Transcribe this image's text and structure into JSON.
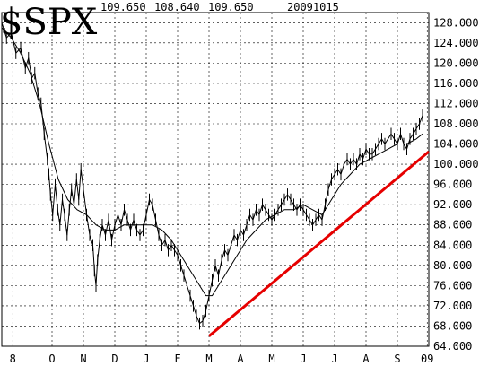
{
  "chart_data": {
    "type": "line",
    "title": "$SPX",
    "header_values": [
      "109.650",
      "108.640",
      "109.650",
      "20091015"
    ],
    "ylim": [
      64,
      130
    ],
    "y_ticks": [
      "64.000",
      "68.000",
      "72.000",
      "76.000",
      "80.000",
      "84.000",
      "88.000",
      "92.000",
      "96.000",
      "100.000",
      "104.000",
      "108.000",
      "112.000",
      "116.000",
      "120.000",
      "124.000",
      "128.000"
    ],
    "x_ticks": [
      {
        "label": "8",
        "m": 0.35
      },
      {
        "label": "O",
        "m": 1.6
      },
      {
        "label": "N",
        "m": 2.6
      },
      {
        "label": "D",
        "m": 3.6
      },
      {
        "label": "J",
        "m": 4.6
      },
      {
        "label": "F",
        "m": 5.6
      },
      {
        "label": "M",
        "m": 6.6
      },
      {
        "label": "A",
        "m": 7.6
      },
      {
        "label": "M",
        "m": 8.6
      },
      {
        "label": "J",
        "m": 9.6
      },
      {
        "label": "J",
        "m": 10.6
      },
      {
        "label": "A",
        "m": 11.6
      },
      {
        "label": "S",
        "m": 12.6
      },
      {
        "label": "09",
        "m": 13.55
      }
    ],
    "grid": true,
    "series": [
      {
        "style": "price-bars",
        "color": "#000000",
        "points": [
          [
            0.0,
            128
          ],
          [
            0.15,
            125
          ],
          [
            0.3,
            126
          ],
          [
            0.45,
            122
          ],
          [
            0.6,
            123
          ],
          [
            0.75,
            119
          ],
          [
            0.85,
            121
          ],
          [
            0.95,
            117
          ],
          [
            1.05,
            118
          ],
          [
            1.15,
            114
          ],
          [
            1.25,
            112
          ],
          [
            1.35,
            106
          ],
          [
            1.45,
            101
          ],
          [
            1.5,
            98
          ],
          [
            1.55,
            94
          ],
          [
            1.62,
            90
          ],
          [
            1.7,
            96
          ],
          [
            1.78,
            91
          ],
          [
            1.85,
            88
          ],
          [
            1.93,
            93
          ],
          [
            2.0,
            90
          ],
          [
            2.08,
            86
          ],
          [
            2.15,
            91
          ],
          [
            2.22,
            95
          ],
          [
            2.3,
            92
          ],
          [
            2.38,
            97
          ],
          [
            2.45,
            93
          ],
          [
            2.52,
            99
          ],
          [
            2.6,
            95
          ],
          [
            2.7,
            90
          ],
          [
            2.8,
            86
          ],
          [
            2.9,
            84
          ],
          [
            2.95,
            79
          ],
          [
            3.0,
            76
          ],
          [
            3.05,
            81
          ],
          [
            3.12,
            85
          ],
          [
            3.2,
            88
          ],
          [
            3.3,
            86
          ],
          [
            3.4,
            89
          ],
          [
            3.5,
            85
          ],
          [
            3.6,
            88
          ],
          [
            3.7,
            90
          ],
          [
            3.8,
            88
          ],
          [
            3.9,
            91
          ],
          [
            4.0,
            89
          ],
          [
            4.1,
            87
          ],
          [
            4.2,
            89
          ],
          [
            4.3,
            87
          ],
          [
            4.4,
            86
          ],
          [
            4.5,
            87
          ],
          [
            4.6,
            90
          ],
          [
            4.7,
            93
          ],
          [
            4.8,
            92
          ],
          [
            4.9,
            89
          ],
          [
            5.0,
            86
          ],
          [
            5.1,
            84
          ],
          [
            5.2,
            85
          ],
          [
            5.3,
            83
          ],
          [
            5.4,
            84
          ],
          [
            5.5,
            83
          ],
          [
            5.6,
            82
          ],
          [
            5.7,
            80
          ],
          [
            5.8,
            78
          ],
          [
            5.9,
            76
          ],
          [
            6.0,
            74
          ],
          [
            6.1,
            72
          ],
          [
            6.2,
            70
          ],
          [
            6.3,
            68.5
          ],
          [
            6.4,
            69
          ],
          [
            6.5,
            71
          ],
          [
            6.6,
            74
          ],
          [
            6.7,
            77
          ],
          [
            6.8,
            80
          ],
          [
            6.9,
            78
          ],
          [
            7.0,
            81
          ],
          [
            7.1,
            83
          ],
          [
            7.2,
            82
          ],
          [
            7.3,
            84
          ],
          [
            7.4,
            86
          ],
          [
            7.5,
            85
          ],
          [
            7.6,
            87
          ],
          [
            7.7,
            86
          ],
          [
            7.8,
            88
          ],
          [
            7.9,
            90
          ],
          [
            8.0,
            89
          ],
          [
            8.1,
            91
          ],
          [
            8.2,
            90
          ],
          [
            8.3,
            92
          ],
          [
            8.4,
            91
          ],
          [
            8.5,
            90
          ],
          [
            8.6,
            89
          ],
          [
            8.7,
            90
          ],
          [
            8.8,
            91
          ],
          [
            8.9,
            92
          ],
          [
            9.0,
            93
          ],
          [
            9.1,
            94
          ],
          [
            9.2,
            93
          ],
          [
            9.3,
            92
          ],
          [
            9.4,
            91
          ],
          [
            9.5,
            92
          ],
          [
            9.6,
            91
          ],
          [
            9.7,
            90
          ],
          [
            9.8,
            89
          ],
          [
            9.9,
            88
          ],
          [
            10.0,
            89
          ],
          [
            10.1,
            90
          ],
          [
            10.2,
            89
          ],
          [
            10.3,
            92
          ],
          [
            10.4,
            95
          ],
          [
            10.5,
            97
          ],
          [
            10.6,
            98
          ],
          [
            10.7,
            99
          ],
          [
            10.8,
            98
          ],
          [
            10.9,
            100
          ],
          [
            11.0,
            101
          ],
          [
            11.1,
            100
          ],
          [
            11.2,
            101
          ],
          [
            11.3,
            100
          ],
          [
            11.4,
            102
          ],
          [
            11.5,
            101
          ],
          [
            11.6,
            103
          ],
          [
            11.7,
            102
          ],
          [
            11.8,
            102
          ],
          [
            11.9,
            103
          ],
          [
            12.0,
            104
          ],
          [
            12.1,
            105
          ],
          [
            12.2,
            104
          ],
          [
            12.3,
            105
          ],
          [
            12.4,
            106
          ],
          [
            12.5,
            105
          ],
          [
            12.6,
            104
          ],
          [
            12.7,
            106
          ],
          [
            12.8,
            104
          ],
          [
            12.9,
            103
          ],
          [
            13.0,
            105
          ],
          [
            13.1,
            106
          ],
          [
            13.2,
            107
          ],
          [
            13.3,
            108
          ],
          [
            13.4,
            109.65
          ]
        ]
      },
      {
        "style": "moving-average",
        "color": "#000000",
        "points": [
          [
            0.0,
            127
          ],
          [
            0.3,
            125
          ],
          [
            0.6,
            122
          ],
          [
            0.9,
            118
          ],
          [
            1.2,
            112
          ],
          [
            1.5,
            104
          ],
          [
            1.8,
            97
          ],
          [
            2.1,
            93
          ],
          [
            2.4,
            91
          ],
          [
            2.7,
            90
          ],
          [
            3.0,
            88
          ],
          [
            3.3,
            87
          ],
          [
            3.6,
            87
          ],
          [
            3.9,
            88
          ],
          [
            4.2,
            88
          ],
          [
            4.5,
            88
          ],
          [
            4.8,
            88
          ],
          [
            5.1,
            87
          ],
          [
            5.4,
            85
          ],
          [
            5.7,
            82
          ],
          [
            6.0,
            79
          ],
          [
            6.3,
            76
          ],
          [
            6.5,
            74
          ],
          [
            6.7,
            74
          ],
          [
            6.9,
            76
          ],
          [
            7.2,
            79
          ],
          [
            7.5,
            82
          ],
          [
            7.8,
            85
          ],
          [
            8.1,
            87
          ],
          [
            8.4,
            89
          ],
          [
            8.7,
            90
          ],
          [
            9.0,
            91
          ],
          [
            9.3,
            91
          ],
          [
            9.6,
            92
          ],
          [
            9.9,
            91
          ],
          [
            10.2,
            90
          ],
          [
            10.5,
            93
          ],
          [
            10.8,
            96
          ],
          [
            11.1,
            98
          ],
          [
            11.4,
            100
          ],
          [
            11.7,
            101
          ],
          [
            12.0,
            102
          ],
          [
            12.3,
            103
          ],
          [
            12.6,
            104
          ],
          [
            12.9,
            104
          ],
          [
            13.2,
            105
          ],
          [
            13.4,
            106
          ]
        ]
      },
      {
        "style": "trendline",
        "color": "#e60000",
        "points": [
          [
            6.6,
            66
          ],
          [
            13.6,
            102.5
          ]
        ]
      }
    ]
  }
}
